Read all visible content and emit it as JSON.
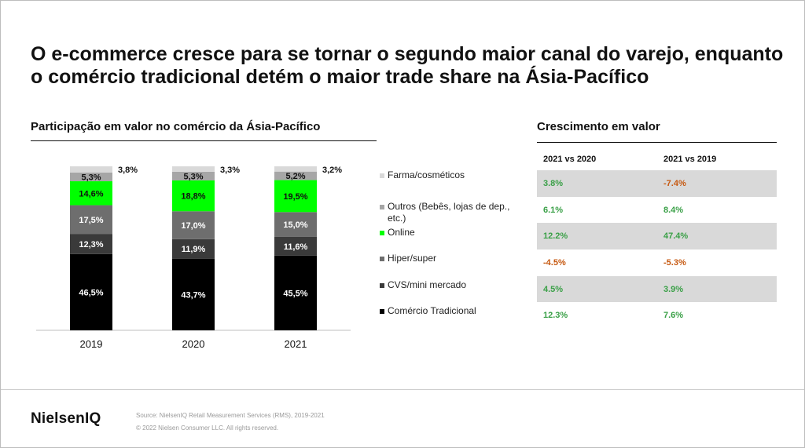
{
  "page": {
    "title": "O e-commerce cresce para se tornar o segundo maior canal do varejo, enquanto o comércio tradicional detém o maior trade share na Ásia-Pacífico",
    "left_subtitle": "Participação em valor no comércio da Ásia-Pacífico"
  },
  "chart_data": {
    "type": "bar",
    "stacked": true,
    "categories": [
      "2019",
      "2020",
      "2021"
    ],
    "series": [
      {
        "name": "Comércio Tradicional",
        "values": [
          46.5,
          43.7,
          45.5
        ],
        "labels": [
          "46,5%",
          "43,7%",
          "45,5%"
        ],
        "color": "#000000"
      },
      {
        "name": "CVS/mini mercado",
        "values": [
          12.3,
          11.9,
          11.6
        ],
        "labels": [
          "12,3%",
          "11,9%",
          "11,6%"
        ],
        "color": "#3a3a3a"
      },
      {
        "name": "Hiper/super",
        "values": [
          17.5,
          17.0,
          15.0
        ],
        "labels": [
          "17,5%",
          "17,0%",
          "15,0%"
        ],
        "color": "#6e6e6e"
      },
      {
        "name": "Online",
        "values": [
          14.6,
          18.8,
          19.5
        ],
        "labels": [
          "14,6%",
          "18,8%",
          "19,5%"
        ],
        "color": "#00ff00"
      },
      {
        "name": "Outros (Bebês, lojas de dep., etc.)",
        "values": [
          5.3,
          5.3,
          5.2
        ],
        "labels": [
          "5,3%",
          "5,3%",
          "5,2%"
        ],
        "color": "#a6a6a6"
      },
      {
        "name": "Farma/cosméticos",
        "values": [
          3.8,
          3.3,
          3.2
        ],
        "labels": [
          "3,8%",
          "3,3%",
          "3,2%"
        ],
        "color": "#d9d9d9"
      }
    ],
    "ylim": [
      0,
      100
    ],
    "legend": "right",
    "grid": false
  },
  "growth_table": {
    "title": "Crescimento  em valor",
    "columns": [
      "2021 vs 2020",
      "2021 vs 2019"
    ],
    "rows": [
      {
        "values": [
          "3.8%",
          "-7.4%"
        ],
        "shaded": true
      },
      {
        "values": [
          "6.1%",
          "8.4%"
        ],
        "shaded": false
      },
      {
        "values": [
          "12.2%",
          "47.4%"
        ],
        "shaded": true
      },
      {
        "values": [
          "-4.5%",
          "-5.3%"
        ],
        "shaded": false
      },
      {
        "values": [
          "4.5%",
          "3.9%"
        ],
        "shaded": true
      },
      {
        "values": [
          "12.3%",
          "7.6%"
        ],
        "shaded": false
      }
    ],
    "colors": {
      "positive": "#3aa047",
      "negative": "#c65911",
      "shade": "#d9d9d9"
    }
  },
  "footer": {
    "logo": "NielsenIQ",
    "source": "Source: NielsenIQ Retail Measurement Services (RMS), 2019-2021",
    "copyright": "© 2022 Nielsen Consumer LLC. All rights reserved."
  }
}
